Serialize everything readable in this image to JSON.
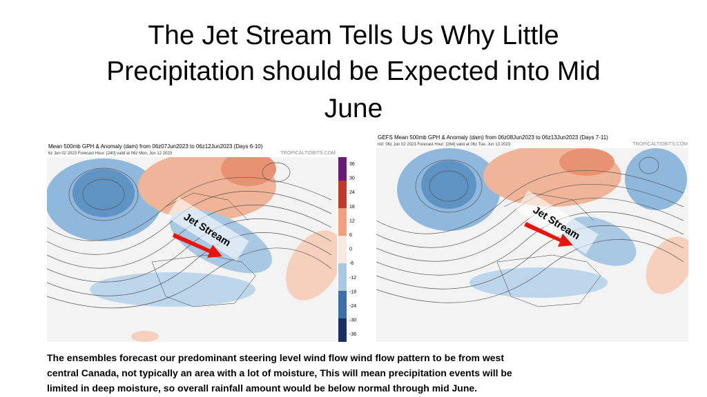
{
  "title": [
    "The Jet Stream Tells Us Why Little",
    "Precipitation should be Expected into Mid",
    "June"
  ],
  "left_map": {
    "header": "Mean 500mb GPH & Anomaly (dam) from 06z07Jun2023 to 06z12Jun2023 (Days 6-10)",
    "subheader": "6z Jun 02 2023   Forecast Hour: [240]   valid at 06z Mon, Jun 12 2023",
    "credit": "TROPICALTIDBITS.COM",
    "annotation": "Jet Stream",
    "colorbar": [
      "36",
      "30",
      "24",
      "18",
      "12",
      "6",
      "0",
      "-6",
      "-12",
      "-18",
      "-24",
      "-30",
      "-36"
    ]
  },
  "right_map": {
    "header": "GEFS Mean 500mb GPH & Anomaly (dam) from 06z08Jun2023 to 06z13Jun2023 (Days 7-11)",
    "subheader": "Init: 06z Jun 02 2023   Forecast Hour: [264]   valid at 06z Tue, Jun 13 2023",
    "credit": "TROPICALTIDBITS.COM",
    "annotation": "Jet Stream"
  },
  "body": [
    "The ensembles forecast our predominant  steering level wind flow   wind flow pattern to be from west",
    "central Canada, not typically an area with a lot of moisture, This will mean precipitation events will be",
    "limited in deep moisture, so overall rainfall amount would be below normal through mid June."
  ]
}
